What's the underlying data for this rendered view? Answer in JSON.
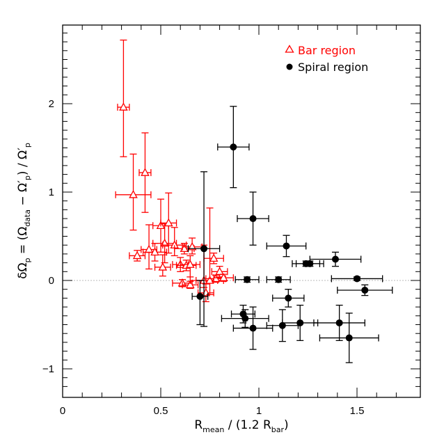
{
  "chart_data": {
    "type": "scatter",
    "xlabel": "R_mean / (1.2 R_bar)",
    "ylabel": "δΩ_p = (Ω_data − Ω'_p) / Ω'_p",
    "xlabel_parts": {
      "r": "R",
      "mean": "mean",
      "mid": " / (1.2 R",
      "bar": "bar",
      "end": ")"
    },
    "ylabel_parts": {
      "lead": "δΩ",
      "p1": "p",
      "eq": " = (Ω",
      "data": "data",
      "minus": " − Ω′",
      "p2": "p",
      "div": ") / Ω′",
      "p3": "p"
    },
    "xlim": [
      0,
      1.8
    ],
    "ylim": [
      -1.3,
      2.85
    ],
    "xticks": [
      0,
      0.5,
      1,
      1.5
    ],
    "xtick_labels": [
      "0",
      "0.5",
      "1",
      "1.5"
    ],
    "yticks": [
      -1,
      0,
      1,
      2
    ],
    "ytick_labels": [
      "−1",
      "0",
      "1",
      "2"
    ],
    "reference_line_y": 0,
    "legend_position": "top-right",
    "series": [
      {
        "name": "Bar region",
        "marker": "open-triangle",
        "color": "#ff0000",
        "points": [
          {
            "x": 0.31,
            "y": 1.96,
            "xerr": 0.03,
            "yerr_low": 0.56,
            "yerr_high": 0.76
          },
          {
            "x": 0.36,
            "y": 0.97,
            "xerr": 0.09,
            "yerr_low": 0.4,
            "yerr_high": 0.46
          },
          {
            "x": 0.42,
            "y": 1.22,
            "xerr": 0.03,
            "yerr_low": 0.45,
            "yerr_high": 0.45
          },
          {
            "x": 0.38,
            "y": 0.28,
            "xerr": 0.04,
            "yerr_low": 0.06,
            "yerr_high": 0.06
          },
          {
            "x": 0.44,
            "y": 0.35,
            "xerr": 0.04,
            "yerr_low": 0.22,
            "yerr_high": 0.28
          },
          {
            "x": 0.47,
            "y": 0.32,
            "xerr": 0.06,
            "yerr_low": 0.1,
            "yerr_high": 0.1
          },
          {
            "x": 0.5,
            "y": 0.62,
            "xerr": 0.04,
            "yerr_low": 0.3,
            "yerr_high": 0.3
          },
          {
            "x": 0.52,
            "y": 0.42,
            "xerr": 0.06,
            "yerr_low": 0.22,
            "yerr_high": 0.22
          },
          {
            "x": 0.54,
            "y": 0.65,
            "xerr": 0.04,
            "yerr_low": 0.34,
            "yerr_high": 0.34
          },
          {
            "x": 0.51,
            "y": 0.15,
            "xerr": 0.04,
            "yerr_low": 0.1,
            "yerr_high": 0.14
          },
          {
            "x": 0.57,
            "y": 0.4,
            "xerr": 0.06,
            "yerr_low": 0.12,
            "yerr_high": 0.2
          },
          {
            "x": 0.6,
            "y": 0.18,
            "xerr": 0.04,
            "yerr_low": 0.08,
            "yerr_high": 0.08
          },
          {
            "x": 0.62,
            "y": 0.36,
            "xerr": 0.05,
            "yerr_low": 0.06,
            "yerr_high": 0.06
          },
          {
            "x": 0.63,
            "y": 0.17,
            "xerr": 0.05,
            "yerr_low": 0.06,
            "yerr_high": 0.06
          },
          {
            "x": 0.65,
            "y": 0.18,
            "xerr": 0.05,
            "yerr_low": 0.14,
            "yerr_high": 0.1
          },
          {
            "x": 0.66,
            "y": 0.38,
            "xerr": 0.05,
            "yerr_low": 0.08,
            "yerr_high": 0.1
          },
          {
            "x": 0.61,
            "y": -0.03,
            "xerr": 0.05,
            "yerr_low": 0.04,
            "yerr_high": 0.04
          },
          {
            "x": 0.65,
            "y": -0.05,
            "xerr": 0.04,
            "yerr_low": 0.04,
            "yerr_high": 0.04
          },
          {
            "x": 0.72,
            "y": 0.0,
            "xerr": 0.07,
            "yerr_low": 0.08,
            "yerr_high": 0.4
          },
          {
            "x": 0.73,
            "y": -0.14,
            "xerr": 0.04,
            "yerr_low": 0.1,
            "yerr_high": 0.1
          },
          {
            "x": 0.75,
            "y": 0.0,
            "xerr": 0.07,
            "yerr_low": 0.16,
            "yerr_high": 0.82
          },
          {
            "x": 0.77,
            "y": 0.25,
            "xerr": 0.05,
            "yerr_low": 0.06,
            "yerr_high": 0.06
          },
          {
            "x": 0.78,
            "y": 0.02,
            "xerr": 0.05,
            "yerr_low": 0.04,
            "yerr_high": 0.04
          },
          {
            "x": 0.8,
            "y": 0.1,
            "xerr": 0.04,
            "yerr_low": 0.06,
            "yerr_high": 0.06
          },
          {
            "x": 0.82,
            "y": 0.03,
            "xerr": 0.05,
            "yerr_low": 0.04,
            "yerr_high": 0.04
          }
        ]
      },
      {
        "name": "Spiral region",
        "marker": "filled-circle",
        "color": "#000000",
        "points": [
          {
            "x": 0.87,
            "y": 1.51,
            "xerr": 0.08,
            "yerr_low": 0.46,
            "yerr_high": 0.46
          },
          {
            "x": 0.97,
            "y": 0.7,
            "xerr": 0.08,
            "yerr_low": 0.3,
            "yerr_high": 0.3
          },
          {
            "x": 0.72,
            "y": 0.36,
            "xerr": 0.08,
            "yerr_low": 0.88,
            "yerr_high": 0.87
          },
          {
            "x": 1.14,
            "y": 0.39,
            "xerr": 0.1,
            "yerr_low": 0.12,
            "yerr_high": 0.12
          },
          {
            "x": 1.24,
            "y": 0.19,
            "xerr": 0.07,
            "yerr_low": 0.03,
            "yerr_high": 0.03
          },
          {
            "x": 1.26,
            "y": 0.19,
            "xerr": 0.07,
            "yerr_low": 0.03,
            "yerr_high": 0.03
          },
          {
            "x": 1.39,
            "y": 0.24,
            "xerr": 0.13,
            "yerr_low": 0.08,
            "yerr_high": 0.08
          },
          {
            "x": 1.5,
            "y": 0.02,
            "xerr": 0.13,
            "yerr_low": 0.02,
            "yerr_high": 0.02
          },
          {
            "x": 1.54,
            "y": -0.11,
            "xerr": 0.14,
            "yerr_low": 0.06,
            "yerr_high": 0.06
          },
          {
            "x": 0.94,
            "y": 0.01,
            "xerr": 0.06,
            "yerr_low": 0.03,
            "yerr_high": 0.03
          },
          {
            "x": 1.1,
            "y": 0.01,
            "xerr": 0.06,
            "yerr_low": 0.03,
            "yerr_high": 0.03
          },
          {
            "x": 0.7,
            "y": -0.18,
            "xerr": 0.04,
            "yerr_low": 0.32,
            "yerr_high": 0.18
          },
          {
            "x": 1.15,
            "y": -0.2,
            "xerr": 0.08,
            "yerr_low": 0.1,
            "yerr_high": 0.1
          },
          {
            "x": 0.92,
            "y": -0.38,
            "xerr": 0.06,
            "yerr_low": 0.1,
            "yerr_high": 0.1
          },
          {
            "x": 0.93,
            "y": -0.43,
            "xerr": 0.12,
            "yerr_low": 0.1,
            "yerr_high": 0.1
          },
          {
            "x": 0.97,
            "y": -0.54,
            "xerr": 0.1,
            "yerr_low": 0.24,
            "yerr_high": 0.24
          },
          {
            "x": 1.12,
            "y": -0.51,
            "xerr": 0.08,
            "yerr_low": 0.18,
            "yerr_high": 0.18
          },
          {
            "x": 1.21,
            "y": -0.48,
            "xerr": 0.09,
            "yerr_low": 0.2,
            "yerr_high": 0.2
          },
          {
            "x": 1.41,
            "y": -0.48,
            "xerr": 0.13,
            "yerr_low": 0.2,
            "yerr_high": 0.2
          },
          {
            "x": 1.46,
            "y": -0.65,
            "xerr": 0.15,
            "yerr_low": 0.28,
            "yerr_high": 0.28
          }
        ]
      }
    ]
  }
}
